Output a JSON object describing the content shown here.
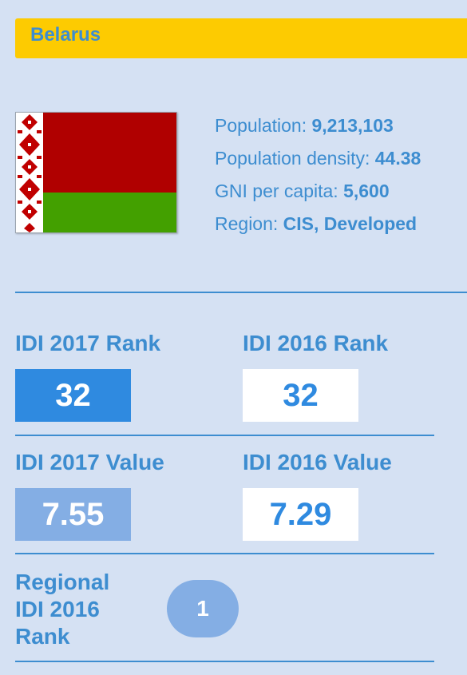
{
  "header": {
    "country": "Belarus"
  },
  "flag": {
    "name": "belarus-flag",
    "colors": {
      "red": "#b00000",
      "green": "#43a000",
      "ornament_bg": "#ffffff",
      "ornament": "#c00000"
    }
  },
  "info": {
    "population_label": "Population:",
    "population_value": "9,213,103",
    "density_label": "Population density:",
    "density_value": "44.38",
    "gni_label": "GNI per capita:",
    "gni_value": "5,600",
    "region_label": "Region:",
    "region_value": "CIS, Developed"
  },
  "stats": {
    "idi2017_rank_label": "IDI 2017 Rank",
    "idi2017_rank_value": "32",
    "idi2016_rank_label": "IDI 2016 Rank",
    "idi2016_rank_value": "32",
    "idi2017_value_label": "IDI 2017 Value",
    "idi2017_value_value": "7.55",
    "idi2016_value_label": "IDI 2016 Value",
    "idi2016_value_value": "7.29",
    "regional_label_line1": "Regional",
    "regional_label_line2": "IDI 2016",
    "regional_label_line3": "Rank",
    "regional_value": "1"
  },
  "colors": {
    "background": "#d5e1f3",
    "header": "#fdcb01",
    "accent_text": "#3d8dd0",
    "box_blue": "#2f8ae0",
    "box_light": "#84aee4",
    "box_white": "#ffffff"
  }
}
